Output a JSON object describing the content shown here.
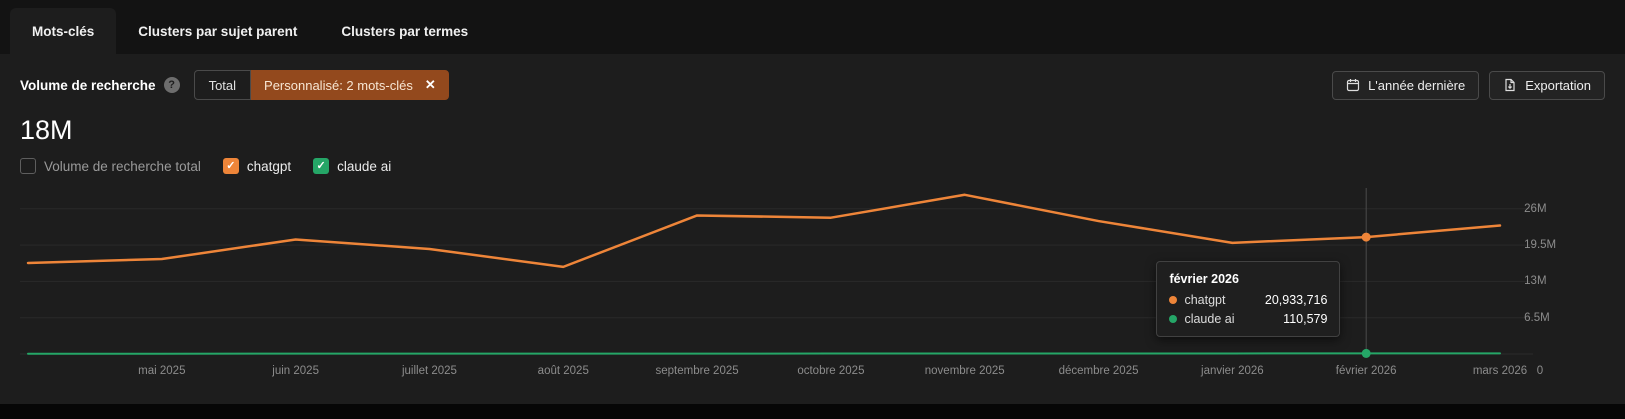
{
  "colors": {
    "orange": "#ee8539",
    "green": "#25a667",
    "custom_button_bg": "#93491d"
  },
  "icons": {
    "help": "?",
    "close": "✕",
    "check": "✓"
  },
  "tabs": [
    {
      "label": "Mots-clés",
      "active": true
    },
    {
      "label": "Clusters par sujet parent",
      "active": false
    },
    {
      "label": "Clusters par termes",
      "active": false
    }
  ],
  "controls": {
    "title": "Volume de recherche",
    "segmented": {
      "total_label": "Total",
      "custom_label": "Personnalisé: 2 mots-clés"
    },
    "buttons": {
      "last_year": "L'année dernière",
      "export": "Exportation"
    }
  },
  "summary": {
    "total_volume": "18M"
  },
  "legend": [
    {
      "label": "Volume de recherche total",
      "checked": false,
      "color": ""
    },
    {
      "label": "chatgpt",
      "checked": true,
      "color": "#ee8539"
    },
    {
      "label": "claude ai",
      "checked": true,
      "color": "#25a667"
    }
  ],
  "tooltip": {
    "title": "février 2026",
    "rows": [
      {
        "name": "chatgpt",
        "value": "20,933,716",
        "color": "#ee8539"
      },
      {
        "name": "claude ai",
        "value": "110,579",
        "color": "#25a667"
      }
    ]
  },
  "chart_data": {
    "type": "line",
    "x_labels": [
      "",
      "mai 2025",
      "juin 2025",
      "juillet 2025",
      "août 2025",
      "septembre 2025",
      "octobre 2025",
      "novembre 2025",
      "décembre 2025",
      "janvier 2026",
      "février 2026",
      "mars 2026"
    ],
    "series": [
      {
        "name": "chatgpt",
        "color": "#ee8539",
        "width": 2.5,
        "values": [
          16.3,
          17.0,
          20.5,
          18.8,
          15.6,
          24.8,
          24.4,
          28.5,
          23.8,
          19.9,
          20.93,
          23.0
        ]
      },
      {
        "name": "claude ai",
        "color": "#25a667",
        "width": 2,
        "values": [
          0.05,
          0.05,
          0.06,
          0.06,
          0.07,
          0.07,
          0.08,
          0.08,
          0.09,
          0.1,
          0.11,
          0.11
        ]
      }
    ],
    "unit": "M (millions, monthly search volume)",
    "y_max": 29,
    "y_ticks": [
      {
        "label": "26M",
        "value": 26
      },
      {
        "label": "19.5M",
        "value": 19.5
      },
      {
        "label": "13M",
        "value": 13
      },
      {
        "label": "6.5M",
        "value": 6.5
      },
      {
        "label": "0",
        "value": 0
      }
    ],
    "marker_index": 10,
    "legend_position": "top-left",
    "grid": true
  }
}
